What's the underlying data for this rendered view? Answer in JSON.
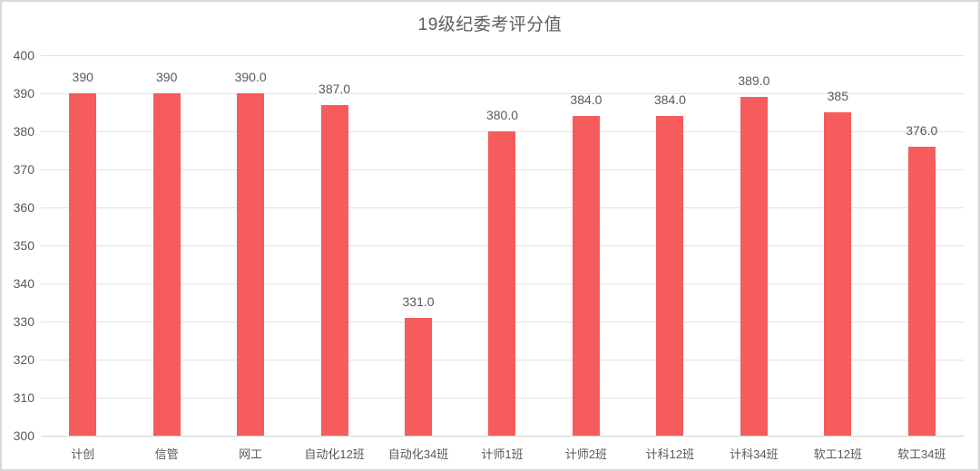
{
  "chart_data": {
    "type": "bar",
    "title": "19级纪委考评分值",
    "categories": [
      "计创",
      "信管",
      "网工",
      "自动化12班",
      "自动化34班",
      "计师1班",
      "计师2班",
      "计科12班",
      "计科34班",
      "软工12班",
      "软工34班"
    ],
    "values": [
      390,
      390,
      390,
      387,
      331,
      380,
      384,
      384,
      389,
      385,
      376
    ],
    "value_labels": [
      "390",
      "390",
      "390.0",
      "387.0",
      "331.0",
      "380.0",
      "384.0",
      "384.0",
      "389.0",
      "385",
      "376.0"
    ],
    "xlabel": "",
    "ylabel": "",
    "ylim": [
      300,
      400
    ],
    "yticks": [
      300,
      310,
      320,
      330,
      340,
      350,
      360,
      370,
      380,
      390,
      400
    ],
    "grid": true,
    "legend": "none",
    "colors": {
      "bar": "#f75c5c",
      "gridline": "#e2e2e2",
      "axis_text": "#595959",
      "title_text": "#5e5e5e",
      "frame_border": "#d8d8d8",
      "background": "#ffffff"
    }
  }
}
